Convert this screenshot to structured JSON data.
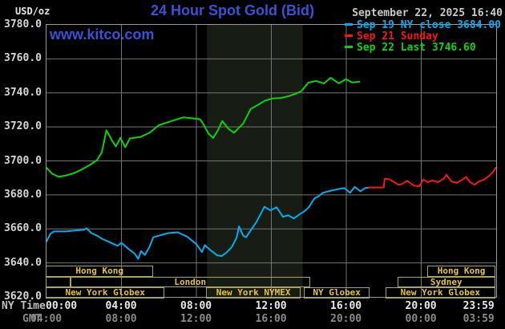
{
  "header": {
    "unit_label": "USD/oz",
    "title": "24 Hour Spot Gold (Bid)",
    "watermark": "www.kitco.com",
    "datetime": "September 22, 2025 16:40",
    "legend": [
      {
        "label": "Sep 19 NY close 3684.00",
        "color": "#00aeef"
      },
      {
        "label": "Sep 21 Sunday",
        "color": "#f51818"
      },
      {
        "label": "Sep 22 Last 3746.60",
        "color": "#0bd30b"
      }
    ]
  },
  "axes": {
    "ny_time_label": "NY Time",
    "gmt_label": "GMT",
    "y_ticks": [
      "3780.0",
      "3760.0",
      "3740.0",
      "3720.0",
      "3700.0",
      "3680.0",
      "3660.0",
      "3640.0",
      "3620.0"
    ],
    "x_tick_hours": [
      0,
      4,
      8,
      12,
      16,
      20,
      23.983
    ],
    "x_ticks_ny": [
      "00:00",
      "04:00",
      "08:00",
      "12:00",
      "16:00",
      "20:00",
      "23:59"
    ],
    "x_ticks_gmt": [
      "04:00",
      "08:00",
      "12:00",
      "16:00",
      "20:00",
      "00:00",
      "03:59"
    ]
  },
  "colors": {
    "background": "#000000",
    "grid": "#757575",
    "plot_border": "#9a9a9a",
    "shaded_band": "#171d15",
    "session_border": "#ada458",
    "session_text": "#e3c43d",
    "title_blue": "#3952d6"
  },
  "sessions": [
    {
      "row": 0,
      "t0": 0,
      "t1": 5.75,
      "label": "Hong Kong"
    },
    {
      "row": 0,
      "t0": 20.37,
      "t1": 24,
      "label": "Hong Kong"
    },
    {
      "row": 1,
      "t0": 0,
      "t1": 1.32,
      "label": ""
    },
    {
      "row": 1,
      "t0": 1.32,
      "t1": 14.1,
      "label": "London"
    },
    {
      "row": 1,
      "t0": 18.76,
      "t1": 24,
      "label": "Sydney"
    },
    {
      "row": 2,
      "t0": 0,
      "t1": 6.35,
      "label": "New York Globex"
    },
    {
      "row": 2,
      "t0": 8.57,
      "t1": 13.6,
      "label": "New York NYMEX"
    },
    {
      "row": 2,
      "t0": 13.77,
      "t1": 17.3,
      "label": "NY Globex"
    },
    {
      "row": 2,
      "t0": 18.12,
      "t1": 24,
      "label": "New York Globex"
    }
  ],
  "chart_data": {
    "type": "line",
    "title": "24 Hour Spot Gold (Bid)",
    "ylabel": "USD/oz",
    "xlabel": "NY Time (hours)",
    "xlim": [
      0,
      24
    ],
    "ylim": [
      3620,
      3780
    ],
    "grid": true,
    "legend_position": "top-right",
    "shaded_band_hours": [
      8.57,
      13.68
    ],
    "series": [
      {
        "name": "Sep 19 NY close 3684.00",
        "color": "#00aeef",
        "points": [
          [
            0,
            3652.5
          ],
          [
            0.2,
            3657
          ],
          [
            0.4,
            3658.5
          ],
          [
            1,
            3658.5
          ],
          [
            1.5,
            3659
          ],
          [
            2.0,
            3659.5
          ],
          [
            2.13,
            3660.4
          ],
          [
            2.4,
            3657.5
          ],
          [
            2.7,
            3656
          ],
          [
            3.0,
            3654
          ],
          [
            3.3,
            3652.5
          ],
          [
            3.8,
            3650
          ],
          [
            4.0,
            3651.8
          ],
          [
            4.4,
            3648
          ],
          [
            4.7,
            3645.5
          ],
          [
            4.9,
            3642.4
          ],
          [
            5.05,
            3647
          ],
          [
            5.25,
            3644.7
          ],
          [
            5.5,
            3649.5
          ],
          [
            5.7,
            3655
          ],
          [
            6.0,
            3656
          ],
          [
            6.5,
            3657.5
          ],
          [
            7.0,
            3658
          ],
          [
            7.5,
            3655.5
          ],
          [
            8.0,
            3651
          ],
          [
            8.3,
            3646.4
          ],
          [
            8.45,
            3650.5
          ],
          [
            8.75,
            3647.5
          ],
          [
            9.1,
            3644.5
          ],
          [
            9.35,
            3644
          ],
          [
            9.6,
            3646
          ],
          [
            9.9,
            3649.5
          ],
          [
            10.15,
            3655
          ],
          [
            10.27,
            3661.5
          ],
          [
            10.5,
            3656
          ],
          [
            10.65,
            3655
          ],
          [
            11.2,
            3664
          ],
          [
            11.63,
            3673
          ],
          [
            11.95,
            3670.9
          ],
          [
            12.28,
            3672.7
          ],
          [
            12.62,
            3667.1
          ],
          [
            12.9,
            3668
          ],
          [
            13.2,
            3666.1
          ],
          [
            13.5,
            3668.5
          ],
          [
            13.77,
            3670.4
          ],
          [
            14.0,
            3672.7
          ],
          [
            14.3,
            3678
          ],
          [
            14.5,
            3679
          ],
          [
            14.75,
            3681.2
          ],
          [
            15.05,
            3682.1
          ],
          [
            15.6,
            3683.5
          ],
          [
            15.9,
            3684
          ],
          [
            16.2,
            3681.2
          ],
          [
            16.45,
            3684.7
          ],
          [
            16.75,
            3682.1
          ],
          [
            17.0,
            3684.0
          ],
          [
            17.2,
            3684.3
          ]
        ]
      },
      {
        "name": "Sep 21 Sunday",
        "color": "#f51818",
        "points": [
          [
            17.2,
            3684.4
          ],
          [
            18.0,
            3684.4
          ],
          [
            18.05,
            3689.5
          ],
          [
            18.3,
            3689.2
          ],
          [
            18.55,
            3687.5
          ],
          [
            18.8,
            3686
          ],
          [
            19.0,
            3686.5
          ],
          [
            19.25,
            3688.3
          ],
          [
            19.6,
            3685.5
          ],
          [
            19.9,
            3685
          ],
          [
            20.1,
            3689
          ],
          [
            20.35,
            3687.5
          ],
          [
            20.6,
            3688.5
          ],
          [
            20.9,
            3687.5
          ],
          [
            21.2,
            3689.5
          ],
          [
            21.35,
            3691.8
          ],
          [
            21.6,
            3688
          ],
          [
            21.9,
            3687
          ],
          [
            22.2,
            3689
          ],
          [
            22.4,
            3690.6
          ],
          [
            22.6,
            3687.5
          ],
          [
            22.85,
            3686
          ],
          [
            23.1,
            3688
          ],
          [
            23.35,
            3689
          ],
          [
            23.6,
            3691
          ],
          [
            23.8,
            3693
          ],
          [
            23.98,
            3696
          ]
        ]
      },
      {
        "name": "Sep 22 Last 3746.60",
        "color": "#0bd30b",
        "points": [
          [
            0,
            3696
          ],
          [
            0.3,
            3692.5
          ],
          [
            0.65,
            3690.6
          ],
          [
            1.0,
            3691.3
          ],
          [
            1.4,
            3692.5
          ],
          [
            1.8,
            3694.5
          ],
          [
            2.3,
            3697.5
          ],
          [
            2.7,
            3700.5
          ],
          [
            2.95,
            3705
          ],
          [
            3.2,
            3718
          ],
          [
            3.5,
            3712
          ],
          [
            3.7,
            3708.5
          ],
          [
            3.95,
            3713.6
          ],
          [
            4.2,
            3708
          ],
          [
            4.45,
            3713.2
          ],
          [
            5.0,
            3714
          ],
          [
            5.5,
            3716.5
          ],
          [
            6.0,
            3721
          ],
          [
            6.7,
            3723.5
          ],
          [
            7.3,
            3725.6
          ],
          [
            7.8,
            3725
          ],
          [
            8.2,
            3724.5
          ],
          [
            8.35,
            3722
          ],
          [
            8.65,
            3716
          ],
          [
            8.9,
            3713.5
          ],
          [
            9.15,
            3718
          ],
          [
            9.38,
            3723.5
          ],
          [
            9.7,
            3719
          ],
          [
            10.0,
            3716.5
          ],
          [
            10.5,
            3722
          ],
          [
            10.9,
            3730.6
          ],
          [
            11.3,
            3733
          ],
          [
            11.64,
            3735.3
          ],
          [
            12.06,
            3736.7
          ],
          [
            12.5,
            3737
          ],
          [
            12.9,
            3738
          ],
          [
            13.3,
            3739.5
          ],
          [
            13.6,
            3741
          ],
          [
            13.98,
            3746
          ],
          [
            14.4,
            3747
          ],
          [
            14.8,
            3745.5
          ],
          [
            15.17,
            3748.9
          ],
          [
            15.6,
            3745.6
          ],
          [
            15.98,
            3748
          ],
          [
            16.33,
            3746.1
          ],
          [
            16.7,
            3746.6
          ]
        ]
      }
    ]
  }
}
